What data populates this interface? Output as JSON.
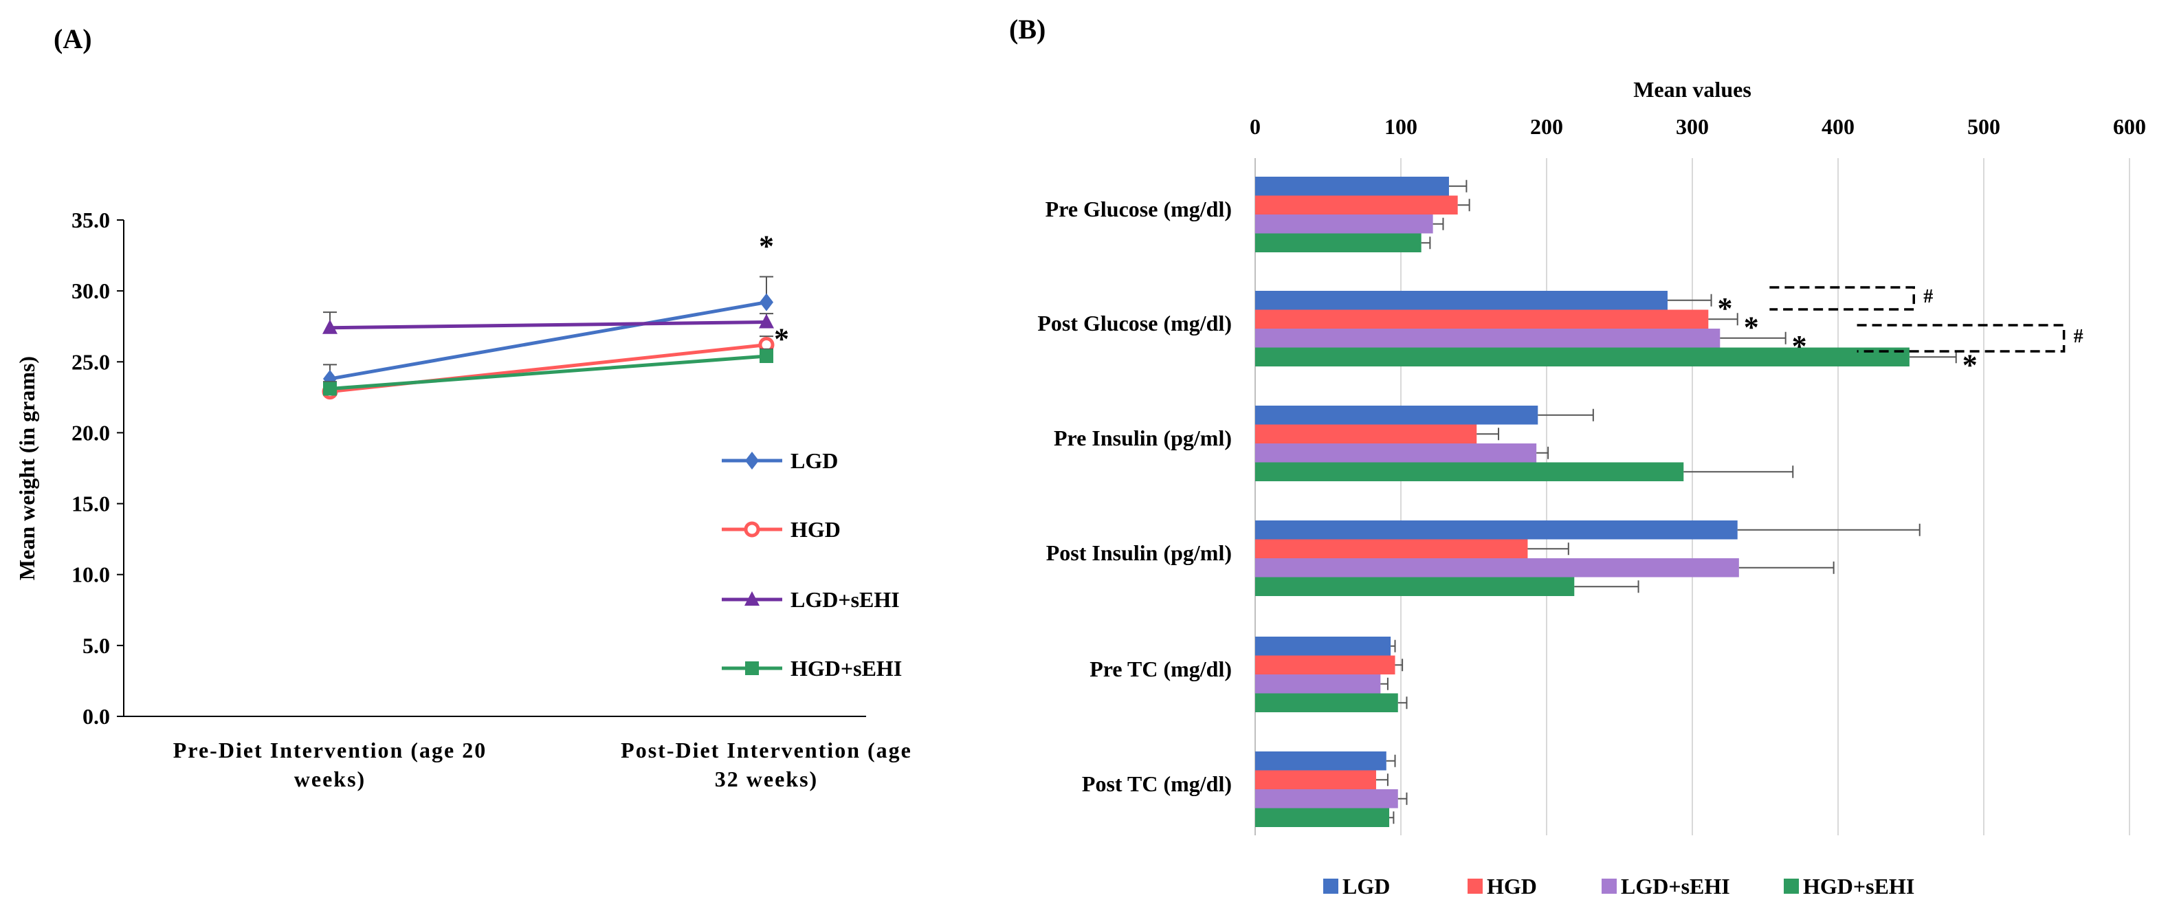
{
  "colors": {
    "LGD": "#4472C4",
    "HGD": "#FF5B5B",
    "LGD+sEHI": "#7030A0",
    "LGD+sEHI_bar": "#A67CD1",
    "HGD+sEHI": "#2E9B5F"
  },
  "chart_data": [
    {
      "panel_label": "(A)",
      "type": "line",
      "title": "",
      "xlabel": "",
      "ylabel": "Mean weight (in grams)",
      "ylim": [
        0,
        35
      ],
      "yticks": [
        "0.0",
        "5.0",
        "10.0",
        "15.0",
        "20.0",
        "25.0",
        "30.0",
        "35.0"
      ],
      "categories": [
        [
          "Pre-Diet Intervention (age 20",
          "weeks)"
        ],
        [
          "Post-Diet Intervention (age",
          "32 weeks)"
        ]
      ],
      "series": [
        {
          "name": "LGD",
          "marker": "diamond",
          "values": [
            23.8,
            29.2
          ],
          "errors": [
            1.0,
            1.8
          ],
          "color_key": "LGD"
        },
        {
          "name": "HGD",
          "marker": "circle",
          "values": [
            22.9,
            26.2
          ],
          "errors": [
            0.6,
            0.6
          ],
          "color_key": "HGD"
        },
        {
          "name": "LGD+sEHI",
          "marker": "triangle",
          "values": [
            27.4,
            27.8
          ],
          "errors": [
            1.1,
            0.6
          ],
          "color_key": "LGD+sEHI"
        },
        {
          "name": "HGD+sEHI",
          "marker": "square",
          "values": [
            23.1,
            25.4
          ],
          "errors": [
            0.5,
            0.5
          ],
          "color_key": "HGD+sEHI"
        }
      ],
      "annotations": [
        {
          "text": "*",
          "series": "LGD",
          "category": 1
        },
        {
          "text": "*",
          "series": "HGD",
          "category": 1
        }
      ],
      "legend": "right"
    },
    {
      "panel_label": "(B)",
      "type": "bar",
      "orientation": "horizontal",
      "title": "",
      "xlabel": "Mean values",
      "xlim": [
        0,
        600
      ],
      "xticks": [
        0,
        100,
        200,
        300,
        400,
        500,
        600
      ],
      "categories": [
        "Pre Glucose (mg/dl)",
        "Post Glucose (mg/dl)",
        "Pre Insulin (pg/ml)",
        "Post Insulin (pg/ml)",
        "Pre TC (mg/dl)",
        "Post TC (mg/dl)"
      ],
      "series": [
        {
          "name": "LGD",
          "values": [
            133,
            283,
            194,
            331,
            93,
            90
          ],
          "errors": [
            12,
            30,
            38,
            125,
            3,
            6
          ],
          "color_key": "LGD"
        },
        {
          "name": "HGD",
          "values": [
            139,
            311,
            152,
            187,
            96,
            83
          ],
          "errors": [
            8,
            20,
            15,
            28,
            5,
            8
          ],
          "color_key": "HGD"
        },
        {
          "name": "LGD+sEHI",
          "values": [
            122,
            319,
            193,
            332,
            86,
            98
          ],
          "errors": [
            7,
            45,
            8,
            65,
            5,
            6
          ],
          "color_key": "LGD+sEHI_bar"
        },
        {
          "name": "HGD+sEHI",
          "values": [
            114,
            449,
            294,
            219,
            98,
            92
          ],
          "errors": [
            6,
            32,
            75,
            44,
            6,
            3
          ],
          "color_key": "HGD+sEHI"
        }
      ],
      "annotations": [
        {
          "text": "*",
          "category": "Post Glucose (mg/dl)",
          "series": "LGD"
        },
        {
          "text": "*",
          "category": "Post Glucose (mg/dl)",
          "series": "HGD"
        },
        {
          "text": "*",
          "category": "Post Glucose (mg/dl)",
          "series": "LGD+sEHI"
        },
        {
          "text": "*",
          "category": "Post Glucose (mg/dl)",
          "series": "HGD+sEHI"
        },
        {
          "text": "#",
          "category": "Post Glucose (mg/dl)",
          "between": [
            "LGD",
            "HGD"
          ]
        },
        {
          "text": "#",
          "category": "Post Glucose (mg/dl)",
          "between": [
            "LGD+sEHI",
            "HGD+sEHI"
          ]
        }
      ],
      "grid": true,
      "legend": "bottom"
    }
  ]
}
